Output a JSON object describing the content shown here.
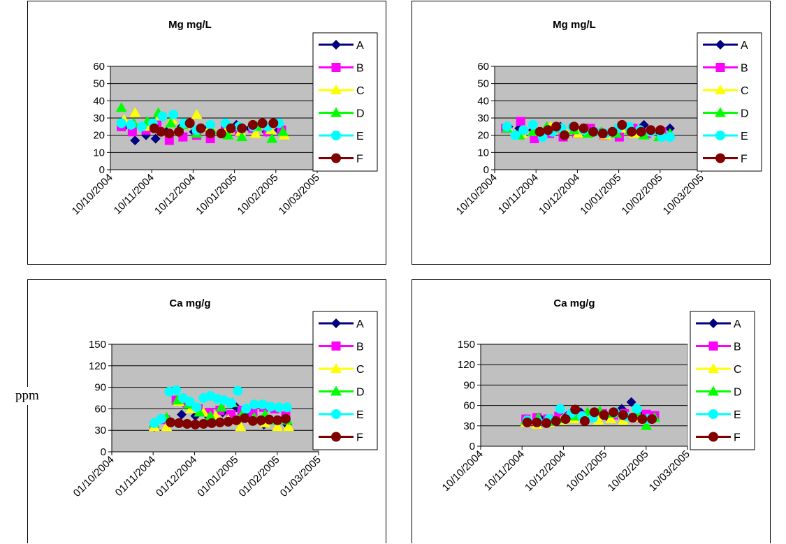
{
  "unit_label": "ppm",
  "chart_data": [
    {
      "type": "scatter",
      "title": "Mg mg/L",
      "ylim": [
        0,
        60
      ],
      "yticks": [
        "0",
        "10",
        "20",
        "30",
        "40",
        "50",
        "60"
      ],
      "xlim": [
        "2004-10-10",
        "2005-03-10"
      ],
      "xticks": [
        "10/10/2004",
        "10/11/2004",
        "10/12/2004",
        "10/01/2005",
        "10/02/2005",
        "10/03/2005"
      ],
      "grid": true,
      "legend_position": "right",
      "series": [
        {
          "name": "A",
          "color": "#000080",
          "marker": "diamond",
          "x": [
            "2004-10-20",
            "2004-10-28",
            "2004-11-05",
            "2004-11-12",
            "2004-11-20",
            "2004-12-01",
            "2004-12-10",
            "2004-12-20",
            "2005-01-01",
            "2005-01-10",
            "2005-01-20",
            "2005-02-01",
            "2005-02-10"
          ],
          "y": [
            25,
            17,
            20,
            18,
            22,
            25,
            22,
            24,
            21,
            26,
            24,
            22,
            23
          ]
        },
        {
          "name": "B",
          "color": "#FF00FF",
          "marker": "square",
          "x": [
            "2004-10-18",
            "2004-10-26",
            "2004-11-05",
            "2004-11-13",
            "2004-11-22",
            "2004-12-02",
            "2004-12-12",
            "2004-12-22",
            "2005-01-02",
            "2005-01-12",
            "2005-01-22",
            "2005-02-02",
            "2005-02-12"
          ],
          "y": [
            25,
            22,
            23,
            26,
            17,
            19,
            20,
            18,
            23,
            22,
            24,
            22,
            23
          ]
        },
        {
          "name": "C",
          "color": "#FFFF00",
          "marker": "triangle",
          "x": [
            "2004-10-20",
            "2004-10-28",
            "2004-11-06",
            "2004-11-15",
            "2004-11-24",
            "2004-12-03",
            "2004-12-12",
            "2004-12-22",
            "2005-01-03",
            "2005-01-13",
            "2005-01-24",
            "2005-02-04",
            "2005-02-14"
          ],
          "y": [
            29,
            33,
            25,
            31,
            29,
            26,
            32,
            25,
            23,
            22,
            21,
            23,
            20
          ]
        },
        {
          "name": "D",
          "color": "#00FF00",
          "marker": "triangle",
          "x": [
            "2004-10-18",
            "2004-10-27",
            "2004-11-06",
            "2004-11-14",
            "2004-11-23",
            "2004-12-02",
            "2004-12-12",
            "2004-12-23",
            "2005-01-04",
            "2005-01-14",
            "2005-01-25",
            "2005-02-05",
            "2005-02-13"
          ],
          "y": [
            36,
            27,
            28,
            33,
            27,
            26,
            21,
            23,
            20,
            19,
            25,
            18,
            22
          ]
        },
        {
          "name": "E",
          "color": "#00FFFF",
          "marker": "circle",
          "x": [
            "2004-10-18",
            "2004-10-25",
            "2004-11-02",
            "2004-11-10",
            "2004-11-17",
            "2004-11-25",
            "2004-12-03",
            "2004-12-12",
            "2004-12-22",
            "2005-01-02",
            "2005-01-12",
            "2005-01-22",
            "2005-02-02",
            "2005-02-10"
          ],
          "y": [
            27,
            26,
            25,
            27,
            31,
            32,
            27,
            23,
            26,
            27,
            25,
            25,
            25,
            27
          ]
        },
        {
          "name": "F",
          "color": "#800000",
          "marker": "circle",
          "x": [
            "2004-11-11",
            "2004-11-16",
            "2004-11-22",
            "2004-11-29",
            "2004-12-07",
            "2004-12-15",
            "2004-12-22",
            "2004-12-30",
            "2005-01-06",
            "2005-01-14",
            "2005-01-22",
            "2005-01-29",
            "2005-02-06"
          ],
          "y": [
            24,
            22,
            21,
            22,
            27,
            24,
            21,
            21,
            24,
            24,
            26,
            27,
            27
          ]
        }
      ]
    },
    {
      "type": "scatter",
      "title": "Mg mg/L",
      "ylim": [
        0,
        60
      ],
      "yticks": [
        "0",
        "10",
        "20",
        "30",
        "40",
        "50",
        "60"
      ],
      "xlim": [
        "2004-10-10",
        "2005-03-10"
      ],
      "xticks": [
        "10/10/2004",
        "10/11/2004",
        "10/12/2004",
        "10/01/2005",
        "10/02/2005",
        "10/03/2005"
      ],
      "grid": true,
      "legend_position": "right",
      "series": [
        {
          "name": "A",
          "color": "#000080",
          "marker": "diamond",
          "x": [
            "2004-10-20",
            "2004-10-28",
            "2004-11-07",
            "2004-11-17",
            "2004-11-27",
            "2004-12-07",
            "2004-12-17",
            "2004-12-27",
            "2005-01-07",
            "2005-01-17",
            "2005-01-27",
            "2005-02-07",
            "2005-02-15"
          ],
          "y": [
            25,
            24,
            23,
            22,
            25,
            25,
            24,
            22,
            22,
            23,
            26,
            22,
            24
          ]
        },
        {
          "name": "B",
          "color": "#FF00FF",
          "marker": "square",
          "x": [
            "2004-10-18",
            "2004-10-29",
            "2004-11-08",
            "2004-11-19",
            "2004-11-29",
            "2004-12-09",
            "2004-12-19",
            "2004-12-29",
            "2005-01-09",
            "2005-01-19",
            "2005-01-29",
            "2005-02-09"
          ],
          "y": [
            24,
            28,
            18,
            21,
            19,
            21,
            24,
            20,
            19,
            24,
            21,
            22
          ]
        },
        {
          "name": "C",
          "color": "#FFFF00",
          "marker": "triangle",
          "x": [
            "2004-10-20",
            "2004-10-30",
            "2004-11-10",
            "2004-11-20",
            "2004-11-30",
            "2004-12-10",
            "2004-12-20",
            "2004-12-30",
            "2005-01-10",
            "2005-01-20",
            "2005-01-30",
            "2005-02-10"
          ],
          "y": [
            24,
            21,
            22,
            25,
            23,
            21,
            22,
            20,
            24,
            21,
            22,
            20
          ]
        },
        {
          "name": "D",
          "color": "#00FF00",
          "marker": "triangle",
          "x": [
            "2004-10-19",
            "2004-10-28",
            "2004-11-07",
            "2004-11-17",
            "2004-11-27",
            "2004-12-07",
            "2004-12-17",
            "2004-12-27",
            "2005-01-07",
            "2005-01-17",
            "2005-01-27",
            "2005-02-07",
            "2005-02-15"
          ],
          "y": [
            24,
            20,
            22,
            25,
            24,
            23,
            21,
            22,
            21,
            23,
            20,
            19,
            21
          ]
        },
        {
          "name": "E",
          "color": "#00FFFF",
          "marker": "circle",
          "x": [
            "2004-10-19",
            "2004-10-25",
            "2004-10-31",
            "2004-11-07",
            "2004-11-14",
            "2004-11-21",
            "2004-11-28",
            "2004-12-06",
            "2004-12-14",
            "2004-12-22",
            "2004-12-30",
            "2005-01-08",
            "2005-01-16",
            "2005-01-24",
            "2005-02-01",
            "2005-02-09",
            "2005-02-15"
          ],
          "y": [
            25,
            20,
            23,
            26,
            19,
            22,
            24,
            25,
            23,
            22,
            21,
            24,
            25,
            23,
            22,
            19,
            19
          ]
        },
        {
          "name": "F",
          "color": "#800000",
          "marker": "circle",
          "x": [
            "2004-11-12",
            "2004-11-18",
            "2004-11-24",
            "2004-11-30",
            "2004-12-07",
            "2004-12-14",
            "2004-12-21",
            "2004-12-28",
            "2005-01-04",
            "2005-01-11",
            "2005-01-18",
            "2005-01-25",
            "2005-02-01",
            "2005-02-08"
          ],
          "y": [
            22,
            23,
            25,
            20,
            25,
            24,
            22,
            21,
            22,
            26,
            22,
            22,
            23,
            23
          ]
        }
      ]
    },
    {
      "type": "scatter",
      "title": "Ca mg/g",
      "ylim": [
        0,
        150
      ],
      "yticks": [
        "0",
        "30",
        "60",
        "90",
        "120",
        "150"
      ],
      "xlim": [
        "2004-10-01",
        "2005-03-01"
      ],
      "xticks": [
        "01/10/2004",
        "01/11/2004",
        "01/12/2004",
        "01/01/2005",
        "01/02/2005",
        "01/03/2005"
      ],
      "grid": true,
      "legend_position": "right",
      "series": [
        {
          "name": "A",
          "color": "#000080",
          "marker": "diamond",
          "x": [
            "2004-11-01",
            "2004-11-11",
            "2004-11-21",
            "2004-12-01",
            "2004-12-11",
            "2004-12-21",
            "2004-12-31",
            "2005-01-10",
            "2005-01-20",
            "2005-01-30",
            "2005-02-06"
          ],
          "y": [
            35,
            45,
            52,
            50,
            48,
            55,
            62,
            50,
            38,
            42,
            38
          ]
        },
        {
          "name": "B",
          "color": "#FF00FF",
          "marker": "square",
          "x": [
            "2004-11-01",
            "2004-11-09",
            "2004-11-17",
            "2004-11-25",
            "2004-12-03",
            "2004-12-11",
            "2004-12-19",
            "2004-12-27",
            "2005-01-04",
            "2005-01-12",
            "2005-01-20",
            "2005-01-28",
            "2005-02-05"
          ],
          "y": [
            37,
            45,
            72,
            68,
            60,
            55,
            58,
            52,
            58,
            55,
            62,
            60,
            50
          ]
        },
        {
          "name": "C",
          "color": "#FFFF00",
          "marker": "triangle",
          "x": [
            "2004-11-01",
            "2004-11-10",
            "2004-11-19",
            "2004-11-28",
            "2004-12-07",
            "2004-12-16",
            "2004-12-25",
            "2005-01-03",
            "2005-01-12",
            "2005-01-21",
            "2005-01-30",
            "2005-02-07"
          ],
          "y": [
            35,
            35,
            70,
            60,
            55,
            50,
            45,
            35,
            45,
            40,
            35,
            35
          ]
        },
        {
          "name": "D",
          "color": "#00FF00",
          "marker": "triangle",
          "x": [
            "2004-11-01",
            "2004-11-10",
            "2004-11-18",
            "2004-11-26",
            "2004-12-04",
            "2004-12-12",
            "2004-12-20",
            "2004-12-28",
            "2005-01-05",
            "2005-01-13",
            "2005-01-21",
            "2005-01-29",
            "2005-02-06"
          ],
          "y": [
            40,
            48,
            72,
            66,
            55,
            50,
            62,
            68,
            55,
            48,
            52,
            44,
            44
          ]
        },
        {
          "name": "E",
          "color": "#00FFFF",
          "marker": "circle",
          "x": [
            "2004-11-01",
            "2004-11-06",
            "2004-11-12",
            "2004-11-17",
            "2004-11-22",
            "2004-11-27",
            "2004-12-02",
            "2004-12-07",
            "2004-12-12",
            "2004-12-17",
            "2004-12-22",
            "2004-12-27",
            "2005-01-01",
            "2005-01-07",
            "2005-01-13",
            "2005-01-19",
            "2005-01-25",
            "2005-01-31",
            "2005-02-06"
          ],
          "y": [
            40,
            46,
            84,
            86,
            75,
            70,
            62,
            75,
            78,
            74,
            72,
            68,
            85,
            60,
            66,
            66,
            63,
            62,
            62
          ]
        },
        {
          "name": "F",
          "color": "#800000",
          "marker": "circle",
          "x": [
            "2004-11-13",
            "2004-11-19",
            "2004-11-25",
            "2004-12-01",
            "2004-12-07",
            "2004-12-13",
            "2004-12-19",
            "2004-12-25",
            "2004-12-31",
            "2005-01-06",
            "2005-01-12",
            "2005-01-18",
            "2005-01-24",
            "2005-01-30",
            "2005-02-05"
          ],
          "y": [
            41,
            40,
            39,
            38,
            39,
            40,
            41,
            42,
            44,
            47,
            43,
            44,
            45,
            44,
            46
          ]
        }
      ]
    },
    {
      "type": "scatter",
      "title": "Ca mg/g",
      "ylim": [
        0,
        150
      ],
      "yticks": [
        "0",
        "30",
        "60",
        "90",
        "120",
        "150"
      ],
      "xlim": [
        "2004-10-10",
        "2005-03-10"
      ],
      "xticks": [
        "10/10/2004",
        "10/11/2004",
        "10/12/2004",
        "10/01/2005",
        "10/02/2005",
        "10/03/2005"
      ],
      "grid": true,
      "legend_position": "right",
      "series": [
        {
          "name": "A",
          "color": "#000080",
          "marker": "diamond",
          "x": [
            "2004-11-12",
            "2004-11-22",
            "2004-12-02",
            "2004-12-12",
            "2004-12-22",
            "2005-01-01",
            "2005-01-11",
            "2005-01-21",
            "2005-01-28",
            "2005-02-05",
            "2005-02-12"
          ],
          "y": [
            40,
            42,
            38,
            45,
            50,
            45,
            42,
            55,
            65,
            45,
            42
          ]
        },
        {
          "name": "B",
          "color": "#FF00FF",
          "marker": "square",
          "x": [
            "2004-11-12",
            "2004-11-20",
            "2004-11-28",
            "2004-12-06",
            "2004-12-14",
            "2004-12-22",
            "2004-12-30",
            "2005-01-07",
            "2005-01-15",
            "2005-01-23",
            "2005-01-31",
            "2005-02-08",
            "2005-02-14"
          ],
          "y": [
            40,
            42,
            40,
            44,
            42,
            45,
            44,
            48,
            46,
            48,
            42,
            47,
            45
          ]
        },
        {
          "name": "C",
          "color": "#FFFF00",
          "marker": "triangle",
          "x": [
            "2004-11-12",
            "2004-11-20",
            "2004-11-29",
            "2004-12-08",
            "2004-12-17",
            "2004-12-26",
            "2005-01-04",
            "2005-01-13",
            "2005-01-22",
            "2005-01-31",
            "2005-02-09"
          ],
          "y": [
            35,
            32,
            35,
            38,
            40,
            42,
            38,
            40,
            38,
            42,
            40
          ]
        },
        {
          "name": "D",
          "color": "#00FF00",
          "marker": "triangle",
          "x": [
            "2004-11-12",
            "2004-11-21",
            "2004-11-30",
            "2004-12-09",
            "2004-12-18",
            "2004-12-27",
            "2005-01-05",
            "2005-01-14",
            "2005-01-23",
            "2005-02-01",
            "2005-02-08",
            "2005-02-14"
          ],
          "y": [
            38,
            42,
            36,
            40,
            44,
            50,
            52,
            48,
            45,
            50,
            30,
            42
          ]
        },
        {
          "name": "E",
          "color": "#00FFFF",
          "marker": "circle",
          "x": [
            "2004-11-13",
            "2004-11-21",
            "2004-11-29",
            "2004-12-07",
            "2004-12-15",
            "2004-12-23",
            "2004-12-31",
            "2005-01-08",
            "2005-01-16",
            "2005-01-24",
            "2005-02-01",
            "2005-02-09"
          ],
          "y": [
            38,
            36,
            40,
            55,
            48,
            44,
            42,
            46,
            50,
            44,
            55,
            40
          ]
        },
        {
          "name": "F",
          "color": "#800000",
          "marker": "circle",
          "x": [
            "2004-11-13",
            "2004-11-20",
            "2004-11-27",
            "2004-12-04",
            "2004-12-11",
            "2004-12-18",
            "2004-12-25",
            "2005-01-01",
            "2005-01-08",
            "2005-01-15",
            "2005-01-22",
            "2005-01-29",
            "2005-02-05",
            "2005-02-12"
          ],
          "y": [
            35,
            35,
            34,
            37,
            40,
            54,
            37,
            50,
            46,
            50,
            46,
            42,
            40,
            40
          ]
        }
      ]
    }
  ]
}
